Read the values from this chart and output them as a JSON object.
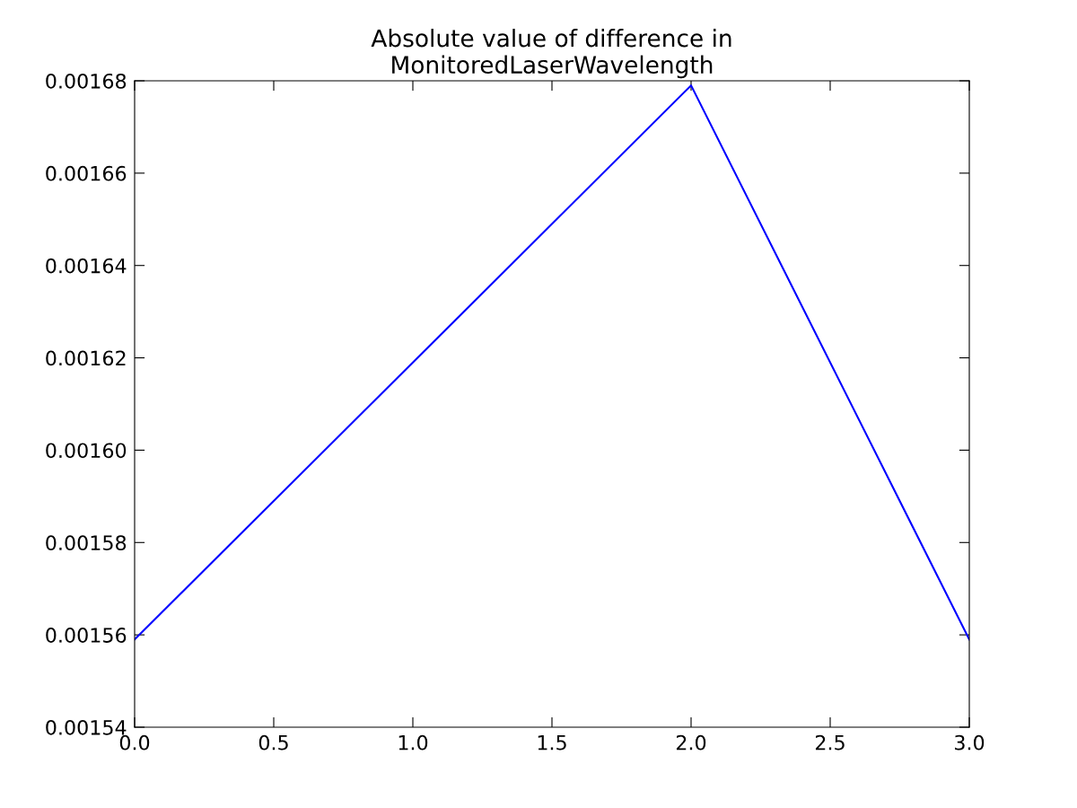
{
  "chart_data": {
    "type": "line",
    "title": "Absolute value of difference in\nMonitoredLaserWavelength",
    "x": [
      0,
      1,
      2,
      3
    ],
    "series": [
      {
        "color": "#0000ff",
        "values": [
          0.001559,
          0.001619,
          0.001679,
          0.001559
        ]
      }
    ],
    "xlim": [
      0.0,
      3.0
    ],
    "xticks": [
      {
        "value": 0.0,
        "label": "0.0"
      },
      {
        "value": 0.5,
        "label": "0.5"
      },
      {
        "value": 1.0,
        "label": "1.0"
      },
      {
        "value": 1.5,
        "label": "1.5"
      },
      {
        "value": 2.0,
        "label": "2.0"
      },
      {
        "value": 2.5,
        "label": "2.5"
      },
      {
        "value": 3.0,
        "label": "3.0"
      }
    ],
    "ylim": [
      0.00154,
      0.00168
    ],
    "yticks": [
      {
        "value": 0.00154,
        "label": "0.00154"
      },
      {
        "value": 0.00156,
        "label": "0.00156"
      },
      {
        "value": 0.00158,
        "label": "0.00158"
      },
      {
        "value": 0.0016,
        "label": "0.00160"
      },
      {
        "value": 0.00162,
        "label": "0.00162"
      },
      {
        "value": 0.00164,
        "label": "0.00164"
      },
      {
        "value": 0.00166,
        "label": "0.00166"
      },
      {
        "value": 0.00168,
        "label": "0.00168"
      }
    ],
    "grid": false,
    "legend": false
  }
}
